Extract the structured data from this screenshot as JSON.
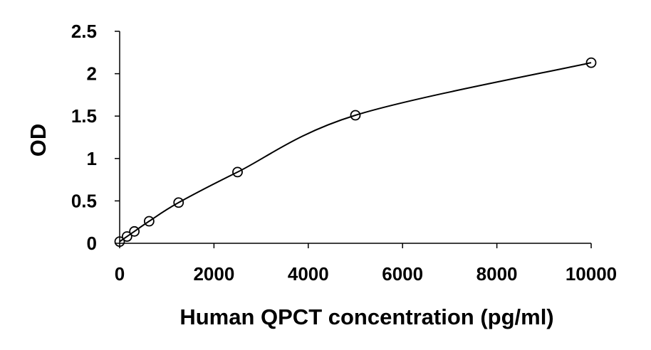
{
  "chart_data": {
    "type": "scatter",
    "title": "",
    "xlabel": "Human QPCT concentration (pg/ml)",
    "ylabel": "OD",
    "xlim": [
      0,
      10000
    ],
    "ylim": [
      0,
      2.5
    ],
    "xticks": [
      0,
      2000,
      4000,
      6000,
      8000,
      10000
    ],
    "xtick_labels": [
      "0",
      "2000",
      "4000",
      "6000",
      "8000",
      "10000"
    ],
    "yticks": [
      0,
      0.5,
      1,
      1.5,
      2,
      2.5
    ],
    "ytick_labels": [
      "0",
      "0.5",
      "1",
      "1.5",
      "2",
      "2.5"
    ],
    "grid": false,
    "legend": "none",
    "series": [
      {
        "marker": "open-circle",
        "trendline": "smooth",
        "x": [
          0,
          156,
          312,
          625,
          1250,
          2500,
          5000,
          10000
        ],
        "y": [
          0.02,
          0.08,
          0.14,
          0.26,
          0.48,
          0.84,
          1.51,
          2.13
        ]
      }
    ]
  }
}
